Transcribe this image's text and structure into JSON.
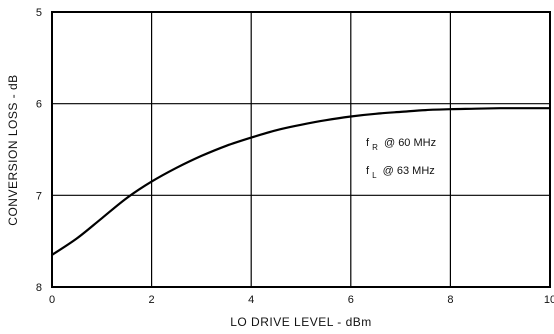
{
  "chart_data": {
    "type": "line",
    "title": "",
    "xlabel": "LO DRIVE LEVEL - dBm",
    "ylabel": "CONVERSION LOSS - dB",
    "xlim": [
      0,
      10
    ],
    "ylim": [
      5,
      8
    ],
    "y_inverted": true,
    "grid": true,
    "x_ticks": [
      "0",
      "2",
      "4",
      "6",
      "8",
      "10"
    ],
    "y_ticks": [
      "5",
      "6",
      "7",
      "8"
    ],
    "series": [
      {
        "name": "",
        "color": "#000000",
        "x": [
          0,
          0.5,
          1,
          1.5,
          2,
          2.5,
          3,
          3.5,
          4,
          4.5,
          5,
          5.5,
          6,
          6.5,
          7,
          7.5,
          8,
          8.5,
          9,
          9.5,
          10
        ],
        "y": [
          7.65,
          7.47,
          7.25,
          7.03,
          6.85,
          6.7,
          6.57,
          6.46,
          6.37,
          6.29,
          6.23,
          6.18,
          6.14,
          6.11,
          6.09,
          6.07,
          6.06,
          6.055,
          6.05,
          6.05,
          6.05
        ]
      }
    ],
    "annotations": [
      {
        "main": "f",
        "sub": "R",
        "text": "@ 60 MHz"
      },
      {
        "main": "f",
        "sub": "L",
        "text": "@ 63 MHz"
      }
    ]
  }
}
